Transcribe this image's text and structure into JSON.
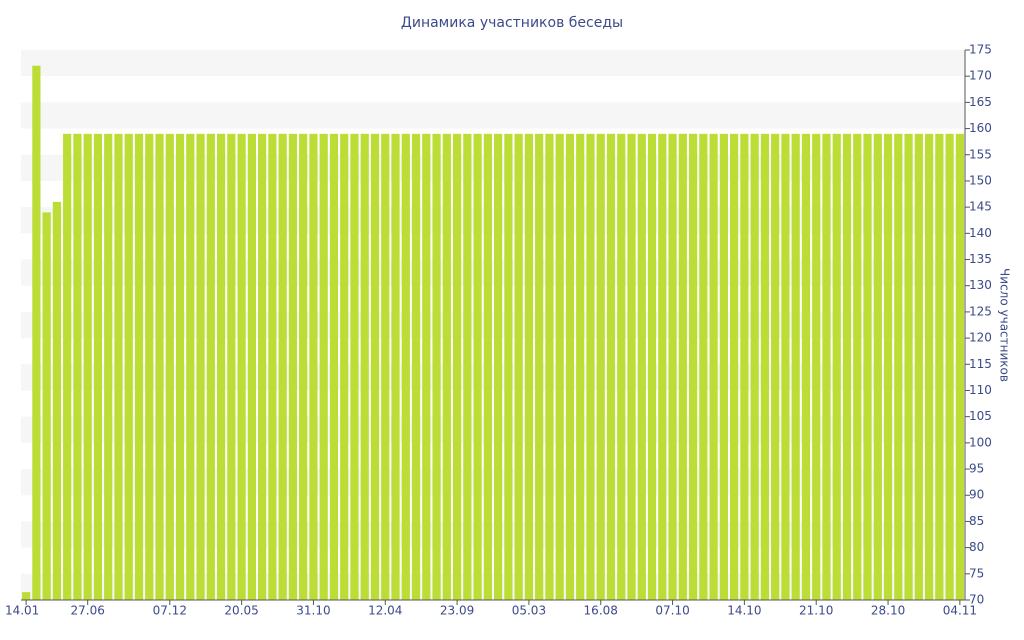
{
  "chart_data": {
    "type": "bar",
    "title": "Динамика участников беседы",
    "y_label": "Число участников",
    "categories": [
      "14.01",
      null,
      null,
      null,
      null,
      null,
      "27.06",
      null,
      null,
      null,
      null,
      null,
      null,
      null,
      "07.12",
      null,
      null,
      null,
      null,
      null,
      null,
      "20.05",
      null,
      null,
      null,
      null,
      null,
      null,
      "31.10",
      null,
      null,
      null,
      null,
      null,
      null,
      "12.04",
      null,
      null,
      null,
      null,
      null,
      null,
      "23.09",
      null,
      null,
      null,
      null,
      null,
      null,
      "05.03",
      null,
      null,
      null,
      null,
      null,
      null,
      "16.08",
      null,
      null,
      null,
      null,
      null,
      null,
      "07.10",
      null,
      null,
      null,
      null,
      null,
      null,
      "14.10",
      null,
      null,
      null,
      null,
      null,
      null,
      "21.10",
      null,
      null,
      null,
      null,
      null,
      null,
      "28.10",
      null,
      null,
      null,
      null,
      null,
      null,
      "04.11"
    ],
    "values": [
      71.5,
      172,
      144,
      146,
      159,
      159,
      159,
      159,
      159,
      159,
      159,
      159,
      159,
      159,
      159,
      159,
      159,
      159,
      159,
      159,
      159,
      159,
      159,
      159,
      159,
      159,
      159,
      159,
      159,
      159,
      159,
      159,
      159,
      159,
      159,
      159,
      159,
      159,
      159,
      159,
      159,
      159,
      159,
      159,
      159,
      159,
      159,
      159,
      159,
      159,
      159,
      159,
      159,
      159,
      159,
      159,
      159,
      159,
      159,
      159,
      159,
      159,
      159,
      159,
      159,
      159,
      159,
      159,
      159,
      159,
      159,
      159,
      159,
      159,
      159,
      159,
      159,
      159,
      159,
      159,
      159,
      159,
      159,
      159,
      159,
      159,
      159,
      159,
      159,
      159,
      159,
      159
    ],
    "color": "#bcdc36",
    "ylim": [
      70,
      175
    ],
    "yticks": [
      70,
      75,
      80,
      85,
      90,
      95,
      100,
      105,
      110,
      115,
      120,
      125,
      130,
      135,
      140,
      145,
      150,
      155,
      160,
      165,
      170,
      175
    ],
    "y_axis_side": "right",
    "grid": "bands"
  }
}
